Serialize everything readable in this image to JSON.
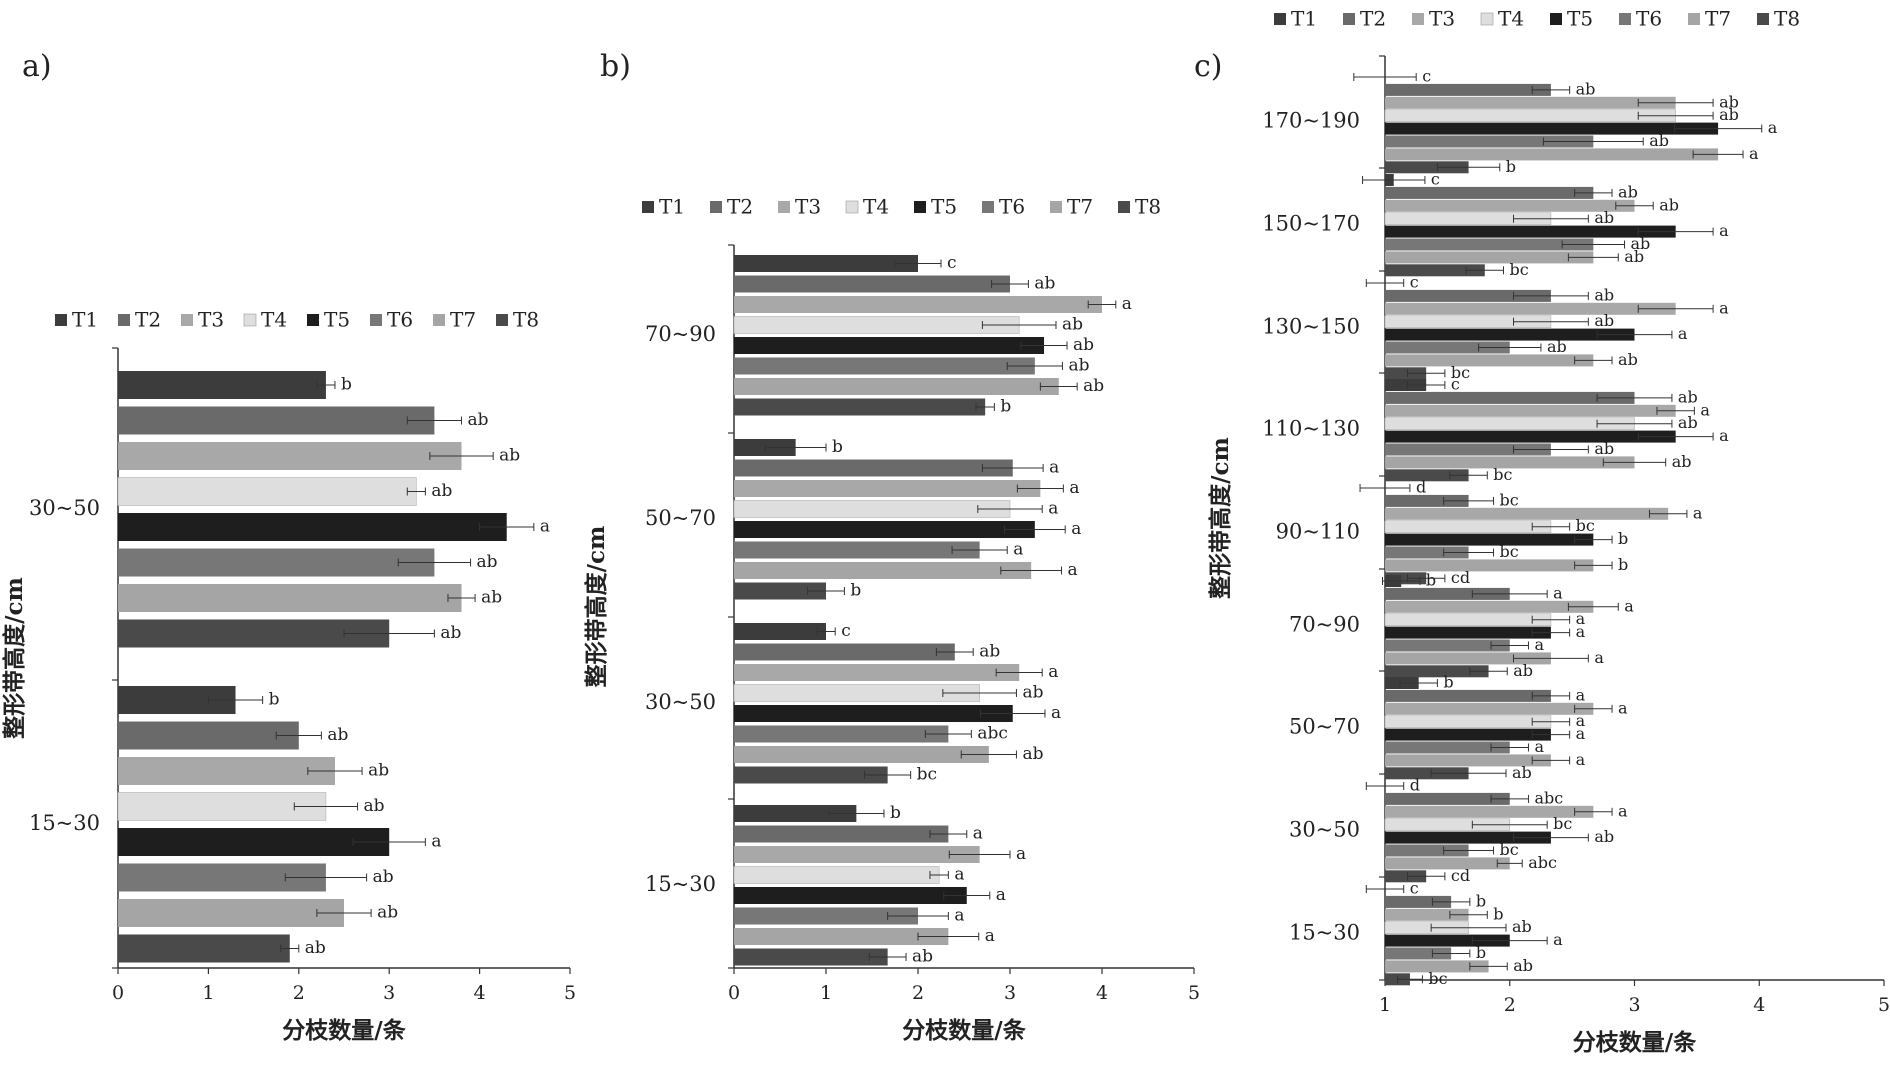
{
  "chart_data": [
    {
      "panel_label": "a)",
      "type": "bar",
      "orientation": "horizontal",
      "xlabel": "分枝数量/条",
      "ylabel": "整形带高度/cm",
      "xlim": [
        0,
        5
      ],
      "xticks": [
        0,
        1,
        2,
        3,
        4,
        5
      ],
      "legend": [
        "T1",
        "T2",
        "T3",
        "T4",
        "T5",
        "T6",
        "T7",
        "T8"
      ],
      "legend_position": "top",
      "grid": false,
      "categories": [
        "30~50",
        "15~30"
      ],
      "groups": [
        {
          "category": "30~50",
          "values": [
            2.3,
            3.5,
            3.8,
            3.3,
            4.3,
            3.5,
            3.8,
            3.0
          ],
          "errors": [
            0.1,
            0.3,
            0.35,
            0.1,
            0.3,
            0.4,
            0.15,
            0.5
          ],
          "labels": [
            "b",
            "ab",
            "ab",
            "ab",
            "a",
            "ab",
            "ab",
            "ab"
          ]
        },
        {
          "category": "15~30",
          "values": [
            1.3,
            2.0,
            2.4,
            2.3,
            3.0,
            2.3,
            2.5,
            1.9
          ],
          "errors": [
            0.3,
            0.25,
            0.3,
            0.35,
            0.4,
            0.45,
            0.3,
            0.1
          ],
          "labels": [
            "b",
            "ab",
            "ab",
            "ab",
            "a",
            "ab",
            "ab",
            "ab"
          ]
        }
      ]
    },
    {
      "panel_label": "b)",
      "type": "bar",
      "orientation": "horizontal",
      "xlabel": "分枝数量/条",
      "ylabel": "整形带高度/cm",
      "xlim": [
        0,
        5
      ],
      "xticks": [
        0,
        1,
        2,
        3,
        4,
        5
      ],
      "legend": [
        "T1",
        "T2",
        "T3",
        "T4",
        "T5",
        "T6",
        "T7",
        "T8"
      ],
      "legend_position": "top",
      "grid": false,
      "categories": [
        "70~90",
        "50~70",
        "30~50",
        "15~30"
      ],
      "groups": [
        {
          "category": "70~90",
          "values": [
            2.0,
            3.0,
            4.0,
            3.1,
            3.37,
            3.27,
            3.53,
            2.73
          ],
          "errors": [
            0.25,
            0.2,
            0.15,
            0.4,
            0.25,
            0.3,
            0.2,
            0.1
          ],
          "labels": [
            "c",
            "ab",
            "a",
            "ab",
            "ab",
            "ab",
            "ab",
            "b"
          ]
        },
        {
          "category": "50~70",
          "values": [
            0.67,
            3.03,
            3.33,
            3.0,
            3.27,
            2.67,
            3.23,
            1.0
          ],
          "errors": [
            0.33,
            0.33,
            0.25,
            0.35,
            0.33,
            0.3,
            0.33,
            0.2
          ],
          "labels": [
            "b",
            "a",
            "a",
            "a",
            "a",
            "a",
            "a",
            "b"
          ]
        },
        {
          "category": "30~50",
          "values": [
            1.0,
            2.4,
            3.1,
            2.67,
            3.03,
            2.33,
            2.77,
            1.67
          ],
          "errors": [
            0.1,
            0.2,
            0.25,
            0.4,
            0.35,
            0.25,
            0.3,
            0.25
          ],
          "labels": [
            "c",
            "ab",
            "a",
            "ab",
            "a",
            "abc",
            "ab",
            "bc"
          ]
        },
        {
          "category": "15~30",
          "values": [
            1.33,
            2.33,
            2.67,
            2.23,
            2.53,
            2.0,
            2.33,
            1.67
          ],
          "errors": [
            0.3,
            0.2,
            0.33,
            0.1,
            0.25,
            0.33,
            0.33,
            0.2
          ],
          "labels": [
            "b",
            "a",
            "a",
            "a",
            "a",
            "a",
            "a",
            "ab"
          ]
        }
      ]
    },
    {
      "panel_label": "c)",
      "type": "bar",
      "orientation": "horizontal",
      "xlabel": "分枝数量/条",
      "ylabel": "整形带高度/cm",
      "xlim": [
        1,
        5
      ],
      "xticks": [
        1,
        2,
        3,
        4,
        5
      ],
      "legend": [
        "T1",
        "T2",
        "T3",
        "T4",
        "T5",
        "T6",
        "T7",
        "T8"
      ],
      "legend_position": "top",
      "grid": false,
      "categories": [
        "170~190",
        "150~170",
        "130~150",
        "110~130",
        "90~110",
        "70~90",
        "50~70",
        "30~50",
        "15~30"
      ],
      "groups": [
        {
          "category": "170~190",
          "values": [
            1.0,
            2.33,
            3.33,
            3.33,
            3.67,
            2.67,
            3.67,
            1.67
          ],
          "errors": [
            0.25,
            0.15,
            0.3,
            0.3,
            0.35,
            0.4,
            0.2,
            0.25
          ],
          "labels": [
            "c",
            "ab",
            "ab",
            "ab",
            "a",
            "ab",
            "a",
            "b"
          ]
        },
        {
          "category": "150~170",
          "values": [
            1.07,
            2.67,
            3.0,
            2.33,
            3.33,
            2.67,
            2.67,
            1.8
          ],
          "errors": [
            0.25,
            0.15,
            0.15,
            0.3,
            0.3,
            0.25,
            0.2,
            0.15
          ],
          "labels": [
            "c",
            "ab",
            "ab",
            "ab",
            "a",
            "ab",
            "ab",
            "bc"
          ]
        },
        {
          "category": "130~150",
          "values": [
            1.0,
            2.33,
            3.33,
            2.33,
            3.0,
            2.0,
            2.67,
            1.33
          ],
          "errors": [
            0.15,
            0.3,
            0.3,
            0.3,
            0.3,
            0.25,
            0.15,
            0.15
          ],
          "labels": [
            "c",
            "ab",
            "a",
            "ab",
            "a",
            "ab",
            "ab",
            "bc"
          ]
        },
        {
          "category": "110~130",
          "values": [
            1.33,
            3.0,
            3.33,
            3.0,
            3.33,
            2.33,
            3.0,
            1.67
          ],
          "errors": [
            0.15,
            0.3,
            0.15,
            0.3,
            0.3,
            0.3,
            0.25,
            0.15
          ],
          "labels": [
            "c",
            "ab",
            "a",
            "ab",
            "a",
            "ab",
            "ab",
            "bc"
          ]
        },
        {
          "category": "90~110",
          "values": [
            1.0,
            1.67,
            3.27,
            2.33,
            2.67,
            1.67,
            2.67,
            1.33
          ],
          "errors": [
            0.2,
            0.2,
            0.15,
            0.15,
            0.15,
            0.2,
            0.15,
            0.15
          ],
          "labels": [
            "d",
            "bc",
            "a",
            "bc",
            "b",
            "bc",
            "b",
            "cd"
          ]
        },
        {
          "category": "70~90",
          "values": [
            1.13,
            2.0,
            2.67,
            2.33,
            2.33,
            2.0,
            2.33,
            1.83
          ],
          "errors": [
            0.15,
            0.3,
            0.2,
            0.15,
            0.15,
            0.15,
            0.3,
            0.15
          ],
          "labels": [
            "b",
            "a",
            "a",
            "a",
            "a",
            "a",
            "a",
            "ab"
          ]
        },
        {
          "category": "50~70",
          "values": [
            1.27,
            2.33,
            2.67,
            2.33,
            2.33,
            2.0,
            2.33,
            1.67
          ],
          "errors": [
            0.15,
            0.15,
            0.15,
            0.15,
            0.15,
            0.15,
            0.15,
            0.3
          ],
          "labels": [
            "b",
            "a",
            "a",
            "a",
            "a",
            "a",
            "a",
            "ab"
          ]
        },
        {
          "category": "30~50",
          "values": [
            1.0,
            2.0,
            2.67,
            2.0,
            2.33,
            1.67,
            2.0,
            1.33
          ],
          "errors": [
            0.15,
            0.15,
            0.15,
            0.3,
            0.3,
            0.2,
            0.1,
            0.15
          ],
          "labels": [
            "d",
            "abc",
            "a",
            "bc",
            "ab",
            "bc",
            "abc",
            "cd"
          ]
        },
        {
          "category": "15~30",
          "values": [
            1.0,
            1.53,
            1.67,
            1.67,
            2.0,
            1.53,
            1.83,
            1.2
          ],
          "errors": [
            0.15,
            0.15,
            0.15,
            0.3,
            0.3,
            0.15,
            0.15,
            0.1
          ],
          "labels": [
            "c",
            "b",
            "b",
            "ab",
            "a",
            "b",
            "ab",
            "bc"
          ]
        }
      ]
    }
  ],
  "series_colors": [
    "#3c3c3c",
    "#6a6a6a",
    "#a8a8a8",
    "#dedede",
    "#1e1e1e",
    "#777777",
    "#a5a5a5",
    "#4a4a4a"
  ]
}
